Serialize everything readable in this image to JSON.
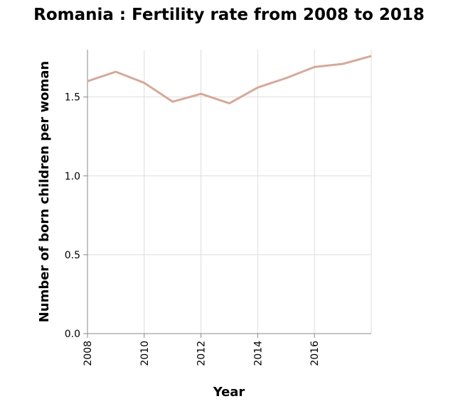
{
  "chart_data": {
    "type": "line",
    "title": "Romania : Fertility rate from 2008 to 2018",
    "xlabel": "Year",
    "ylabel": "Number of born children per woman",
    "xlim": [
      2008,
      2018
    ],
    "ylim": [
      0,
      1.8
    ],
    "x_ticks": [
      2008,
      2010,
      2012,
      2014,
      2016
    ],
    "y_ticks": [
      0.0,
      0.5,
      1.0,
      1.5
    ],
    "y_tick_labels": [
      "0.0",
      "0.5",
      "1.0",
      "1.5"
    ],
    "grid": true,
    "legend": "none",
    "series": [
      {
        "color": "#d6a99a",
        "x": [
          2008,
          2009,
          2010,
          2011,
          2012,
          2013,
          2014,
          2015,
          2016,
          2017,
          2018
        ],
        "y": [
          1.6,
          1.66,
          1.59,
          1.47,
          1.52,
          1.46,
          1.56,
          1.62,
          1.69,
          1.71,
          1.76
        ]
      }
    ]
  }
}
